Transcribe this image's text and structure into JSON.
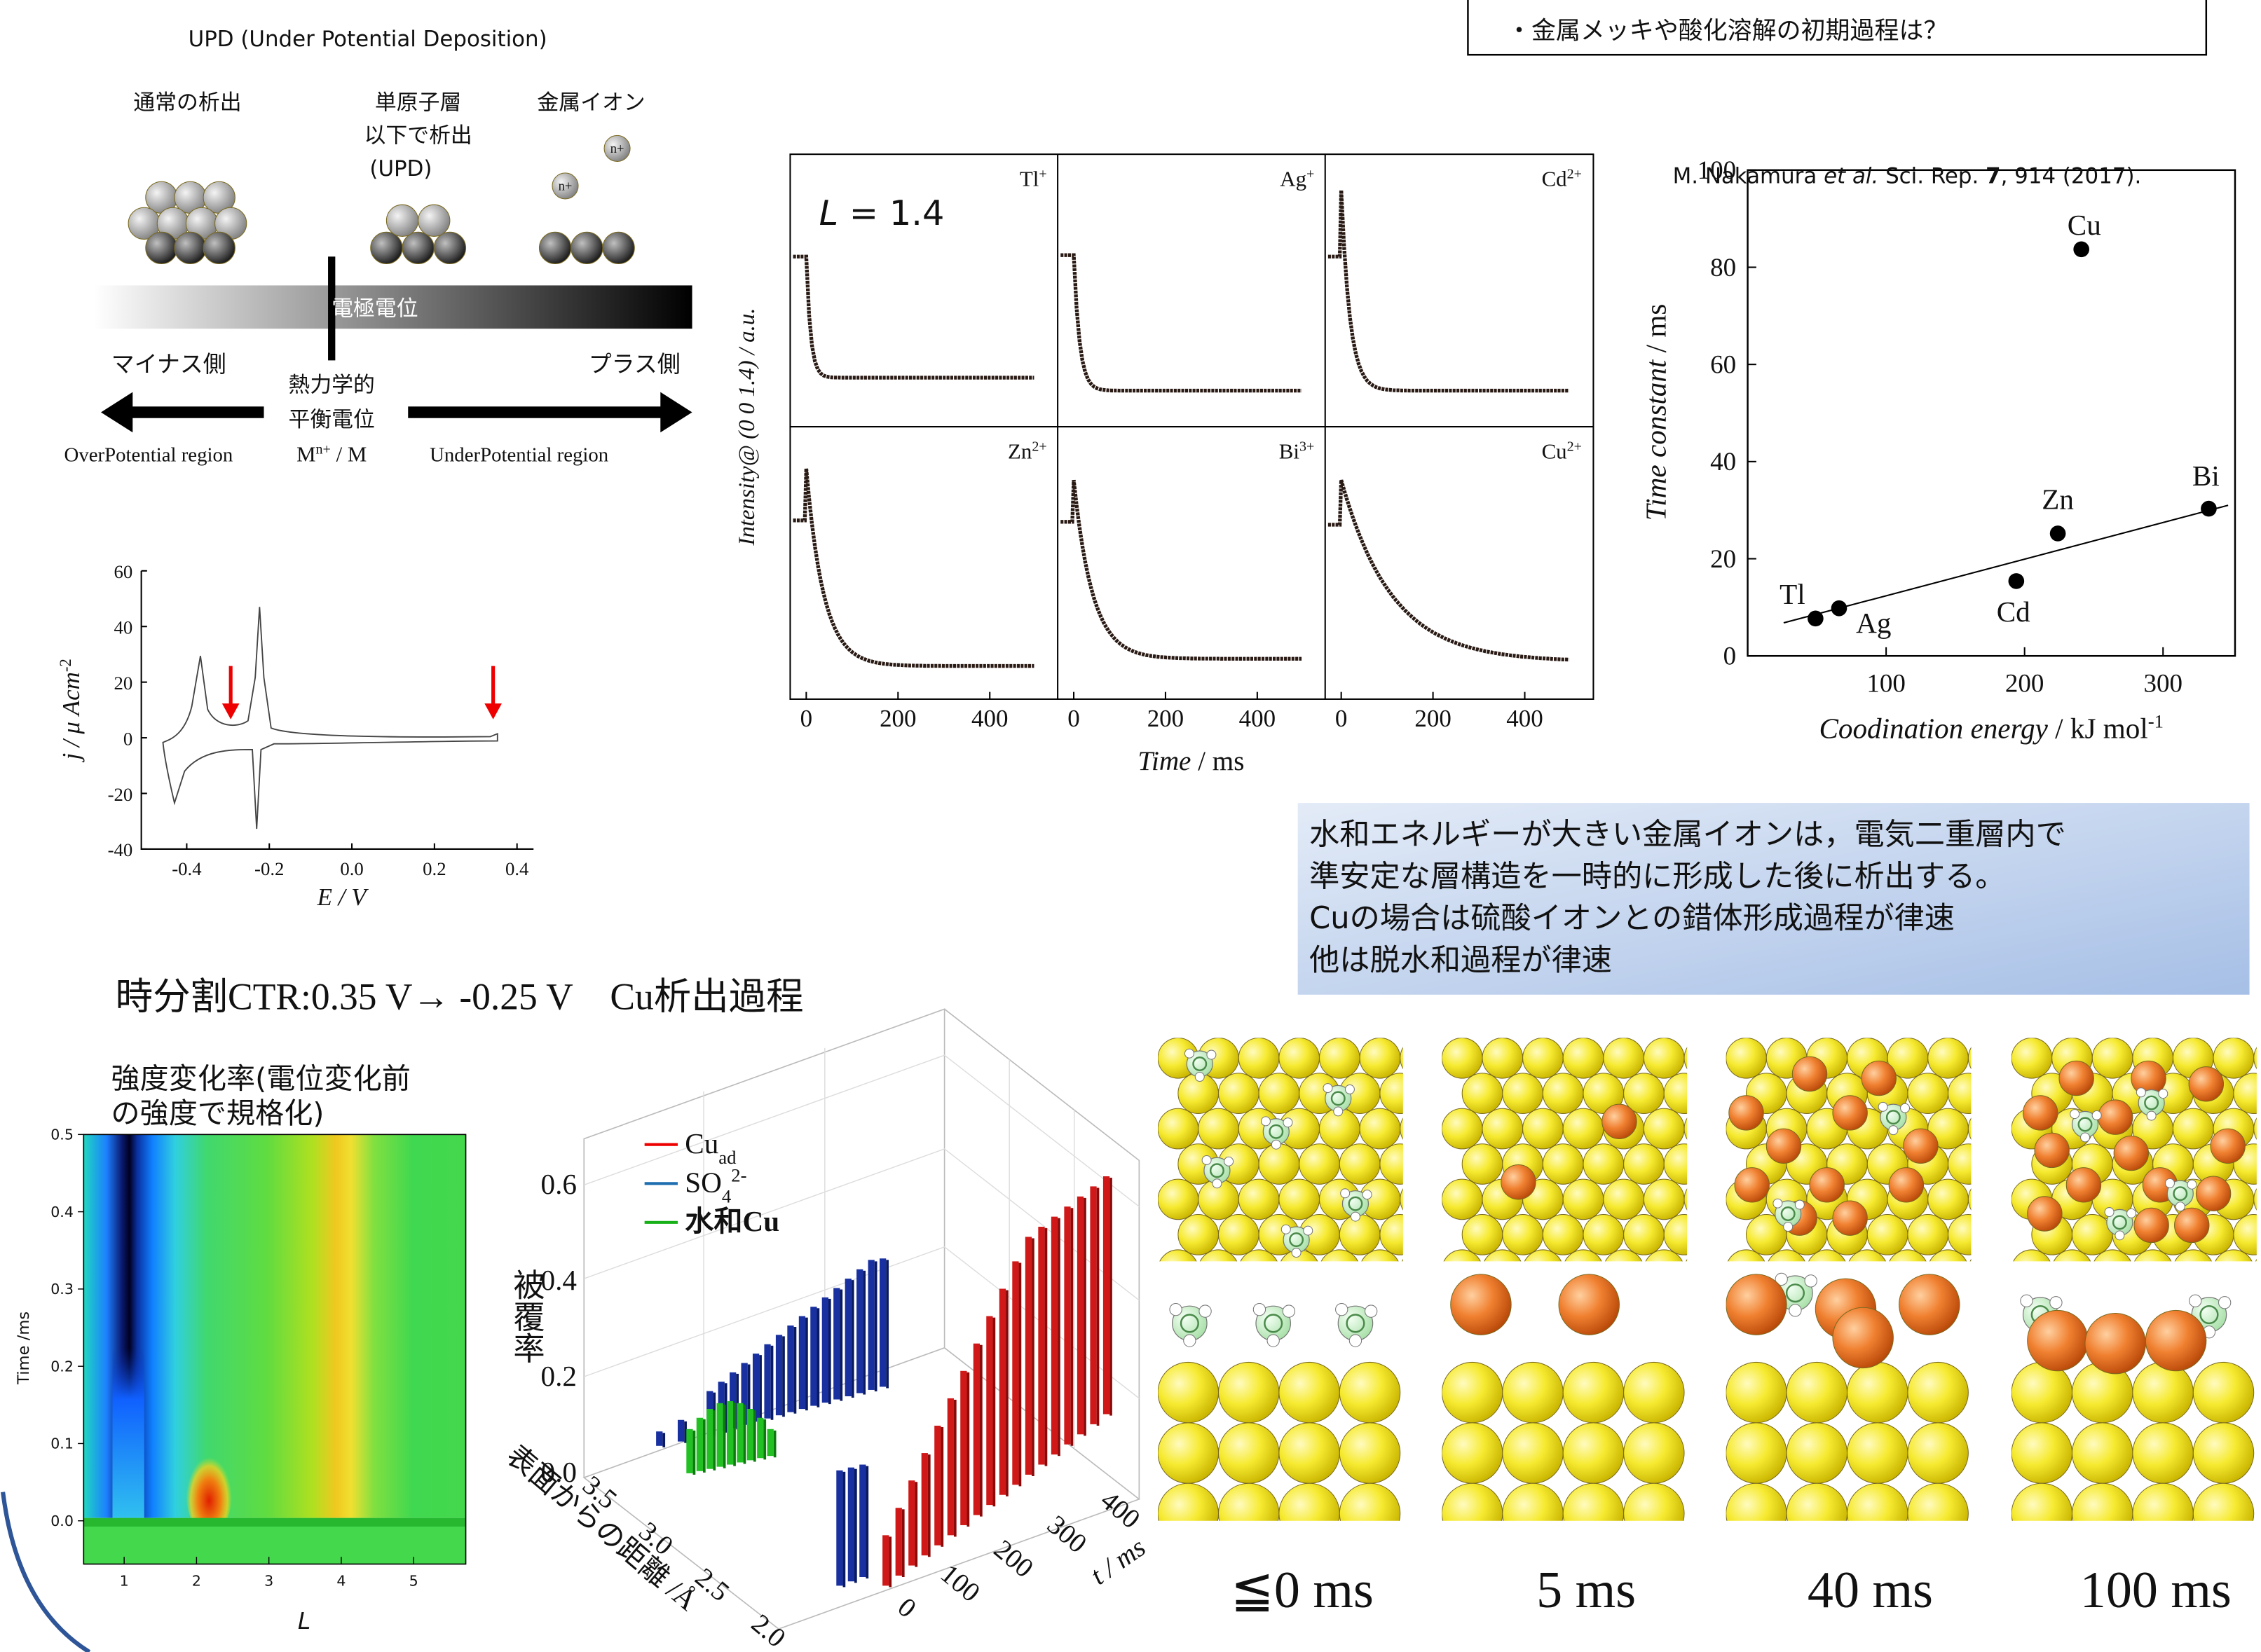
{
  "question_box": "・金属メッキや酸化溶解の初期過程は？",
  "upd_diagram": {
    "title": "UPD (Under Potential Deposition)",
    "normal_deposition": "通常の析出",
    "upd_label": [
      "単原子層",
      "以下で析出",
      "(UPD)"
    ],
    "metal_ion": "金属イオン",
    "ion_charge": "n+",
    "potential_bar": "電極電位",
    "minus_side": "マイナス側",
    "plus_side": "プラス側",
    "equilibrium": [
      "熱力学的",
      "平衡電位"
    ],
    "equilibrium_formula": {
      "base": "M",
      "sup": "n+",
      "rest": " / M"
    },
    "overpotential": "OverPotential region",
    "underpotential": "UnderPotential region"
  },
  "cv_plot": {
    "y_label": {
      "text": "j / μ Acm",
      "sup": "-2"
    },
    "x_label": "E / V",
    "xlim": [
      -0.51,
      0.44
    ],
    "ylim": [
      -40,
      60
    ],
    "xticks": [
      -0.4,
      -0.2,
      {
        "value": 0,
        "label": "0.0"
      },
      0.2,
      0.4
    ],
    "yticks": [
      -40,
      -20,
      0,
      20,
      40,
      60
    ]
  },
  "intensity_panels": {
    "annotation": {
      "symbol": "L",
      "text": " = 1.4"
    },
    "ions": [
      {
        "base": "Tl",
        "sup": "+"
      },
      {
        "base": "Ag",
        "sup": "+"
      },
      {
        "base": "Cd",
        "sup": "2+"
      },
      {
        "base": "Zn",
        "sup": "2+"
      },
      {
        "base": "Bi",
        "sup": "3+"
      },
      {
        "base": "Cu",
        "sup": "2+"
      }
    ],
    "y_label": "Intensity@ (0 0 1.4) / a.u.",
    "x_label": {
      "symbol": "Time",
      "text": " / ms"
    },
    "xlim": [
      -35,
      548
    ],
    "xticks": [
      0,
      200,
      400
    ]
  },
  "scatter_plot": {
    "citation": {
      "authors": "M. Nakamura ",
      "etal": "et al.",
      "journal": " Sci. Rep. ",
      "volume": "7",
      "rest": ", 914 (2017)."
    },
    "y_label": {
      "symbol": "Time constant",
      "text": " / ms"
    },
    "x_label": {
      "symbol": "Coodination energy",
      "text": " / kJ mol",
      "sup": "-1"
    },
    "xlim": [
      0,
      352
    ],
    "ylim": [
      0,
      100
    ],
    "xticks": [
      100,
      200,
      300
    ],
    "yticks": [
      0,
      20,
      40,
      60,
      80,
      100
    ],
    "points": {
      "labels": [
        "Tl",
        "Ag",
        "Cd",
        "Zn",
        "Bi",
        "Cu"
      ],
      "x": [
        49,
        66,
        194,
        224,
        333,
        241
      ],
      "y": [
        7.7,
        9.8,
        15.4,
        25.2,
        30.3,
        83.7
      ]
    },
    "fit_line": {
      "x": [
        26,
        347
      ],
      "y": [
        6.8,
        31
      ]
    }
  },
  "summary_box": [
    "水和エネルギーが大きい金属イオンは，電気二重層内で",
    "準安定な層構造を一時的に形成した後に析出する。",
    "Cuの場合は硫酸イオンとの錯体形成過程が律速",
    "他は脱水和過程が律速"
  ],
  "ctr_title": "時分割CTR:0.35 V→ -0.25 V　Cu析出過程",
  "heatmap": {
    "title_lines": [
      "強度変化率(電位変化前",
      "の強度で規格化)"
    ],
    "y_label": "Time /ms",
    "x_label": "L",
    "xlim": [
      0.44,
      5.72
    ],
    "ylim": [
      -0.056,
      0.5
    ],
    "xticks": [
      1,
      2,
      3,
      4,
      5
    ],
    "yticks": [
      {
        "value": 0,
        "label": "0.0"
      },
      0.1,
      0.2,
      0.3,
      0.4,
      0.5
    ]
  },
  "bar3d": {
    "legend": [
      {
        "name": "Cu",
        "sub": "ad"
      },
      {
        "name": "SO",
        "sub": "4",
        "sup": "2-"
      },
      {
        "name": "水和Cu"
      }
    ],
    "coverage_label": "被覆率",
    "distance_label": "表面からの距離 /Å",
    "time_label": "t / ms",
    "coverage_ticks": [
      {
        "value": 0,
        "label": "0.0"
      },
      0.2,
      0.4,
      0.6
    ],
    "distance_ticks": [
      3.5,
      {
        "value": 3,
        "label": "3.0"
      },
      2.5,
      {
        "value": 2,
        "label": "2.0"
      }
    ],
    "time_ticks": [
      0,
      100,
      200,
      300,
      400
    ]
  },
  "model_panels": {
    "labels": [
      "≦0 ms",
      "5 ms",
      "40 ms",
      "100 ms"
    ]
  }
}
